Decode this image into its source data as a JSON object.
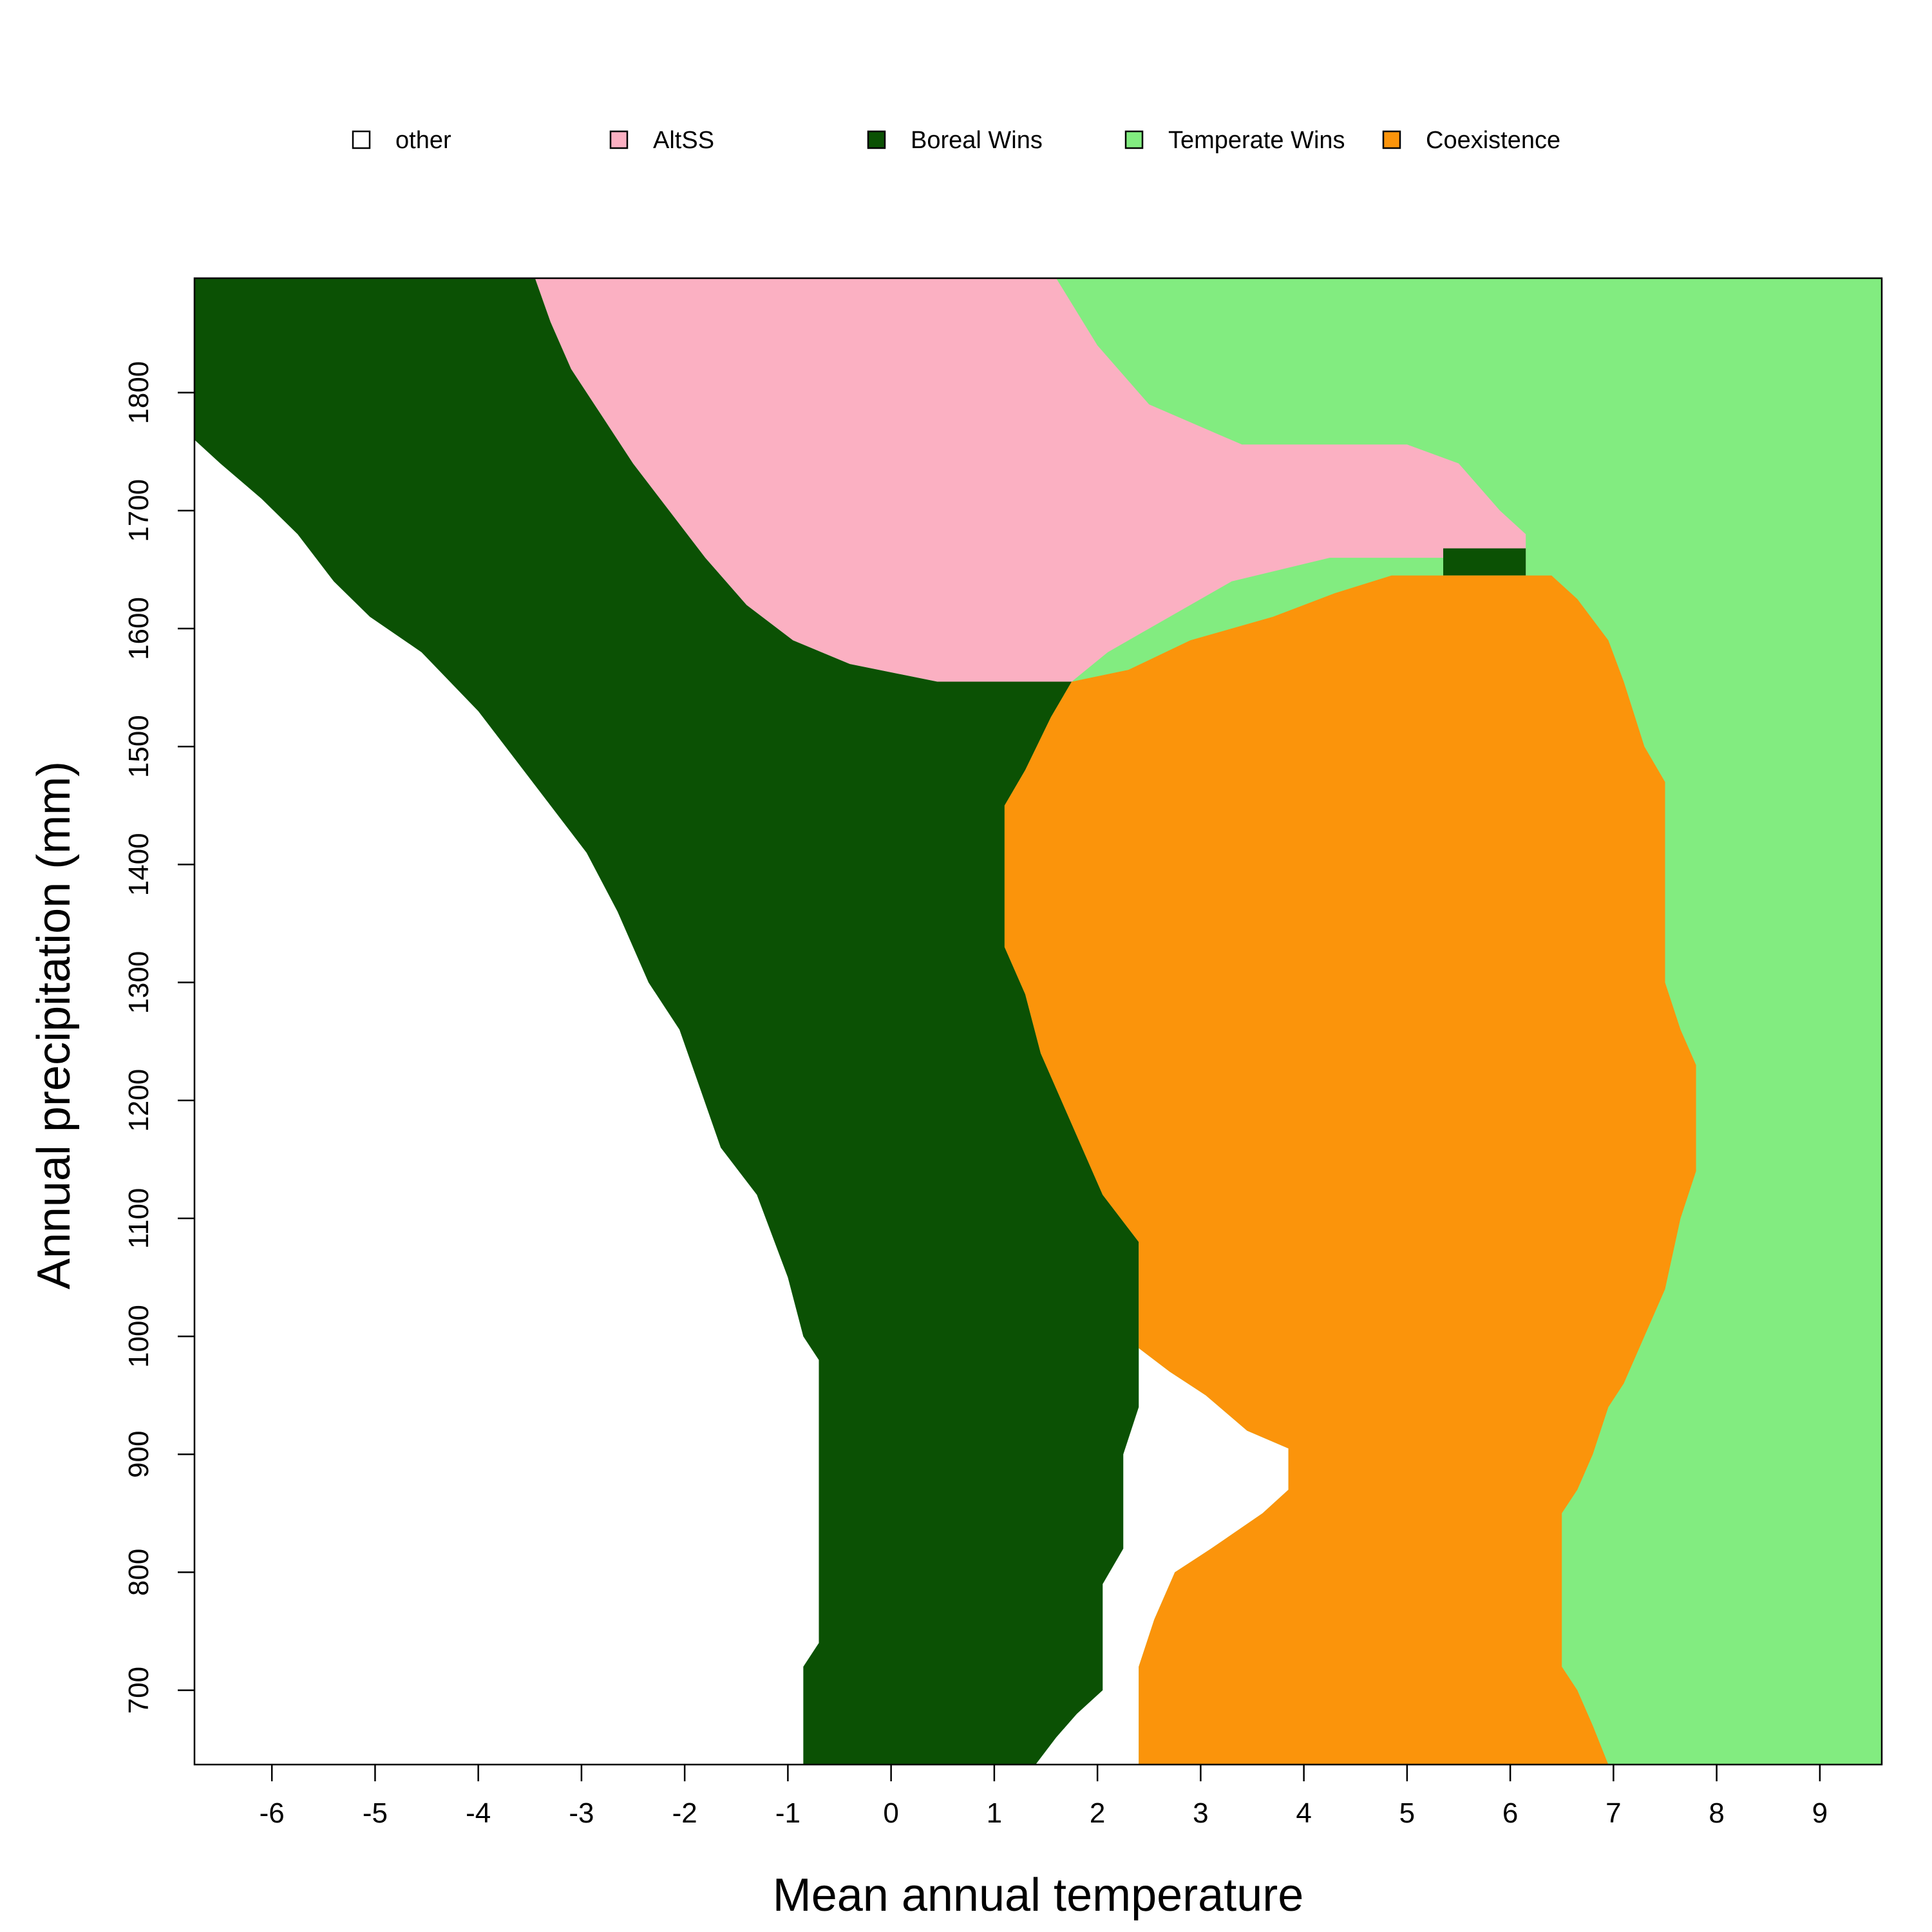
{
  "chart_data": {
    "type": "heatmap",
    "title": "",
    "xlabel": "Mean annual temperature",
    "ylabel": "Annual precipitation (mm)",
    "xlim": [
      -6.75,
      9.6
    ],
    "ylim": [
      637,
      1897
    ],
    "x_ticks": [
      "-6",
      "-5",
      "-4",
      "-3",
      "-2",
      "-1",
      "0",
      "1",
      "2",
      "3",
      "4",
      "5",
      "6",
      "7",
      "8",
      "9"
    ],
    "y_ticks": [
      "700",
      "800",
      "900",
      "1000",
      "1100",
      "1200",
      "1300",
      "1400",
      "1500",
      "1600",
      "1700",
      "1800"
    ],
    "grid": false,
    "legend_position": "top",
    "legend": [
      {
        "key": "other",
        "label": "other",
        "color": "#ffffff"
      },
      {
        "key": "altss",
        "label": "AltSS",
        "color": "#fbb0c2"
      },
      {
        "key": "boreal",
        "label": "Boreal Wins",
        "color": "#0b5104"
      },
      {
        "key": "temperate",
        "label": "Temperate Wins",
        "color": "#82ec80"
      },
      {
        "key": "coexist",
        "label": "Coexistence",
        "color": "#fb940b"
      }
    ],
    "regions": [
      {
        "key": "boreal",
        "boundary": [
          [
            -6.75,
            1897
          ],
          [
            -3.45,
            1897
          ],
          [
            -3.3,
            1860
          ],
          [
            -3.1,
            1820
          ],
          [
            -2.8,
            1780
          ],
          [
            -2.5,
            1740
          ],
          [
            -2.15,
            1700
          ],
          [
            -1.8,
            1660
          ],
          [
            -1.4,
            1620
          ],
          [
            -0.95,
            1590
          ],
          [
            -0.4,
            1570
          ],
          [
            0.45,
            1555
          ],
          [
            1.75,
            1555
          ],
          [
            1.55,
            1525
          ],
          [
            1.3,
            1480
          ],
          [
            1.1,
            1450
          ],
          [
            1.1,
            1330
          ],
          [
            1.3,
            1290
          ],
          [
            1.45,
            1240
          ],
          [
            1.75,
            1180
          ],
          [
            2.05,
            1120
          ],
          [
            2.4,
            1080
          ],
          [
            2.4,
            940
          ],
          [
            2.25,
            900
          ],
          [
            2.25,
            820
          ],
          [
            2.05,
            790
          ],
          [
            2.05,
            700
          ],
          [
            1.8,
            680
          ],
          [
            1.6,
            660
          ],
          [
            1.4,
            637
          ],
          [
            -0.85,
            637
          ],
          [
            -0.85,
            720
          ],
          [
            -0.7,
            740
          ],
          [
            -0.7,
            980
          ],
          [
            -0.85,
            1000
          ],
          [
            -1.0,
            1050
          ],
          [
            -1.3,
            1120
          ],
          [
            -1.65,
            1160
          ],
          [
            -1.85,
            1210
          ],
          [
            -2.05,
            1260
          ],
          [
            -2.35,
            1300
          ],
          [
            -2.65,
            1360
          ],
          [
            -2.95,
            1410
          ],
          [
            -3.3,
            1450
          ],
          [
            -3.65,
            1490
          ],
          [
            -4.0,
            1530
          ],
          [
            -4.55,
            1580
          ],
          [
            -5.05,
            1610
          ],
          [
            -5.4,
            1640
          ],
          [
            -5.75,
            1680
          ],
          [
            -6.1,
            1710
          ],
          [
            -6.5,
            1740
          ],
          [
            -6.75,
            1760
          ]
        ]
      },
      {
        "key": "altss",
        "boundary": [
          [
            -3.45,
            1897
          ],
          [
            1.6,
            1897
          ],
          [
            2.0,
            1840
          ],
          [
            2.5,
            1790
          ],
          [
            3.4,
            1756
          ],
          [
            5.0,
            1756
          ],
          [
            5.5,
            1740
          ],
          [
            5.9,
            1700
          ],
          [
            6.15,
            1680
          ],
          [
            6.15,
            1645
          ],
          [
            5.35,
            1645
          ],
          [
            5.35,
            1660
          ],
          [
            4.25,
            1660
          ],
          [
            3.3,
            1640
          ],
          [
            2.7,
            1610
          ],
          [
            2.1,
            1580
          ],
          [
            1.75,
            1555
          ],
          [
            0.45,
            1555
          ],
          [
            -0.4,
            1570
          ],
          [
            -0.95,
            1590
          ],
          [
            -1.4,
            1620
          ],
          [
            -1.8,
            1660
          ],
          [
            -2.15,
            1700
          ],
          [
            -2.5,
            1740
          ],
          [
            -2.8,
            1780
          ],
          [
            -3.1,
            1820
          ],
          [
            -3.3,
            1860
          ]
        ]
      },
      {
        "key": "boreal",
        "boundary": [
          [
            5.35,
            1645
          ],
          [
            6.15,
            1645
          ],
          [
            6.15,
            1668
          ],
          [
            5.35,
            1668
          ]
        ]
      },
      {
        "key": "coexist",
        "boundary": [
          [
            1.75,
            1555
          ],
          [
            2.3,
            1565
          ],
          [
            2.9,
            1590
          ],
          [
            3.7,
            1610
          ],
          [
            4.3,
            1630
          ],
          [
            4.85,
            1645
          ],
          [
            6.4,
            1645
          ],
          [
            6.65,
            1625
          ],
          [
            6.95,
            1590
          ],
          [
            7.1,
            1555
          ],
          [
            7.3,
            1500
          ],
          [
            7.5,
            1470
          ],
          [
            7.5,
            1300
          ],
          [
            7.65,
            1260
          ],
          [
            7.8,
            1230
          ],
          [
            7.8,
            1140
          ],
          [
            7.65,
            1100
          ],
          [
            7.5,
            1040
          ],
          [
            7.3,
            1000
          ],
          [
            7.1,
            960
          ],
          [
            6.95,
            940
          ],
          [
            6.8,
            900
          ],
          [
            6.65,
            870
          ],
          [
            6.5,
            850
          ],
          [
            6.5,
            720
          ],
          [
            6.65,
            700
          ],
          [
            6.8,
            670
          ],
          [
            6.95,
            637
          ],
          [
            2.4,
            637
          ],
          [
            2.4,
            720
          ],
          [
            2.55,
            760
          ],
          [
            2.75,
            800
          ],
          [
            3.1,
            820
          ],
          [
            3.6,
            850
          ],
          [
            3.85,
            870
          ],
          [
            3.85,
            905
          ],
          [
            3.45,
            920
          ],
          [
            3.05,
            950
          ],
          [
            2.7,
            970
          ],
          [
            2.4,
            990
          ],
          [
            2.4,
            1080
          ],
          [
            2.05,
            1120
          ],
          [
            1.75,
            1180
          ],
          [
            1.45,
            1240
          ],
          [
            1.3,
            1290
          ],
          [
            1.1,
            1330
          ],
          [
            1.1,
            1450
          ],
          [
            1.3,
            1480
          ],
          [
            1.55,
            1525
          ]
        ]
      }
    ]
  }
}
